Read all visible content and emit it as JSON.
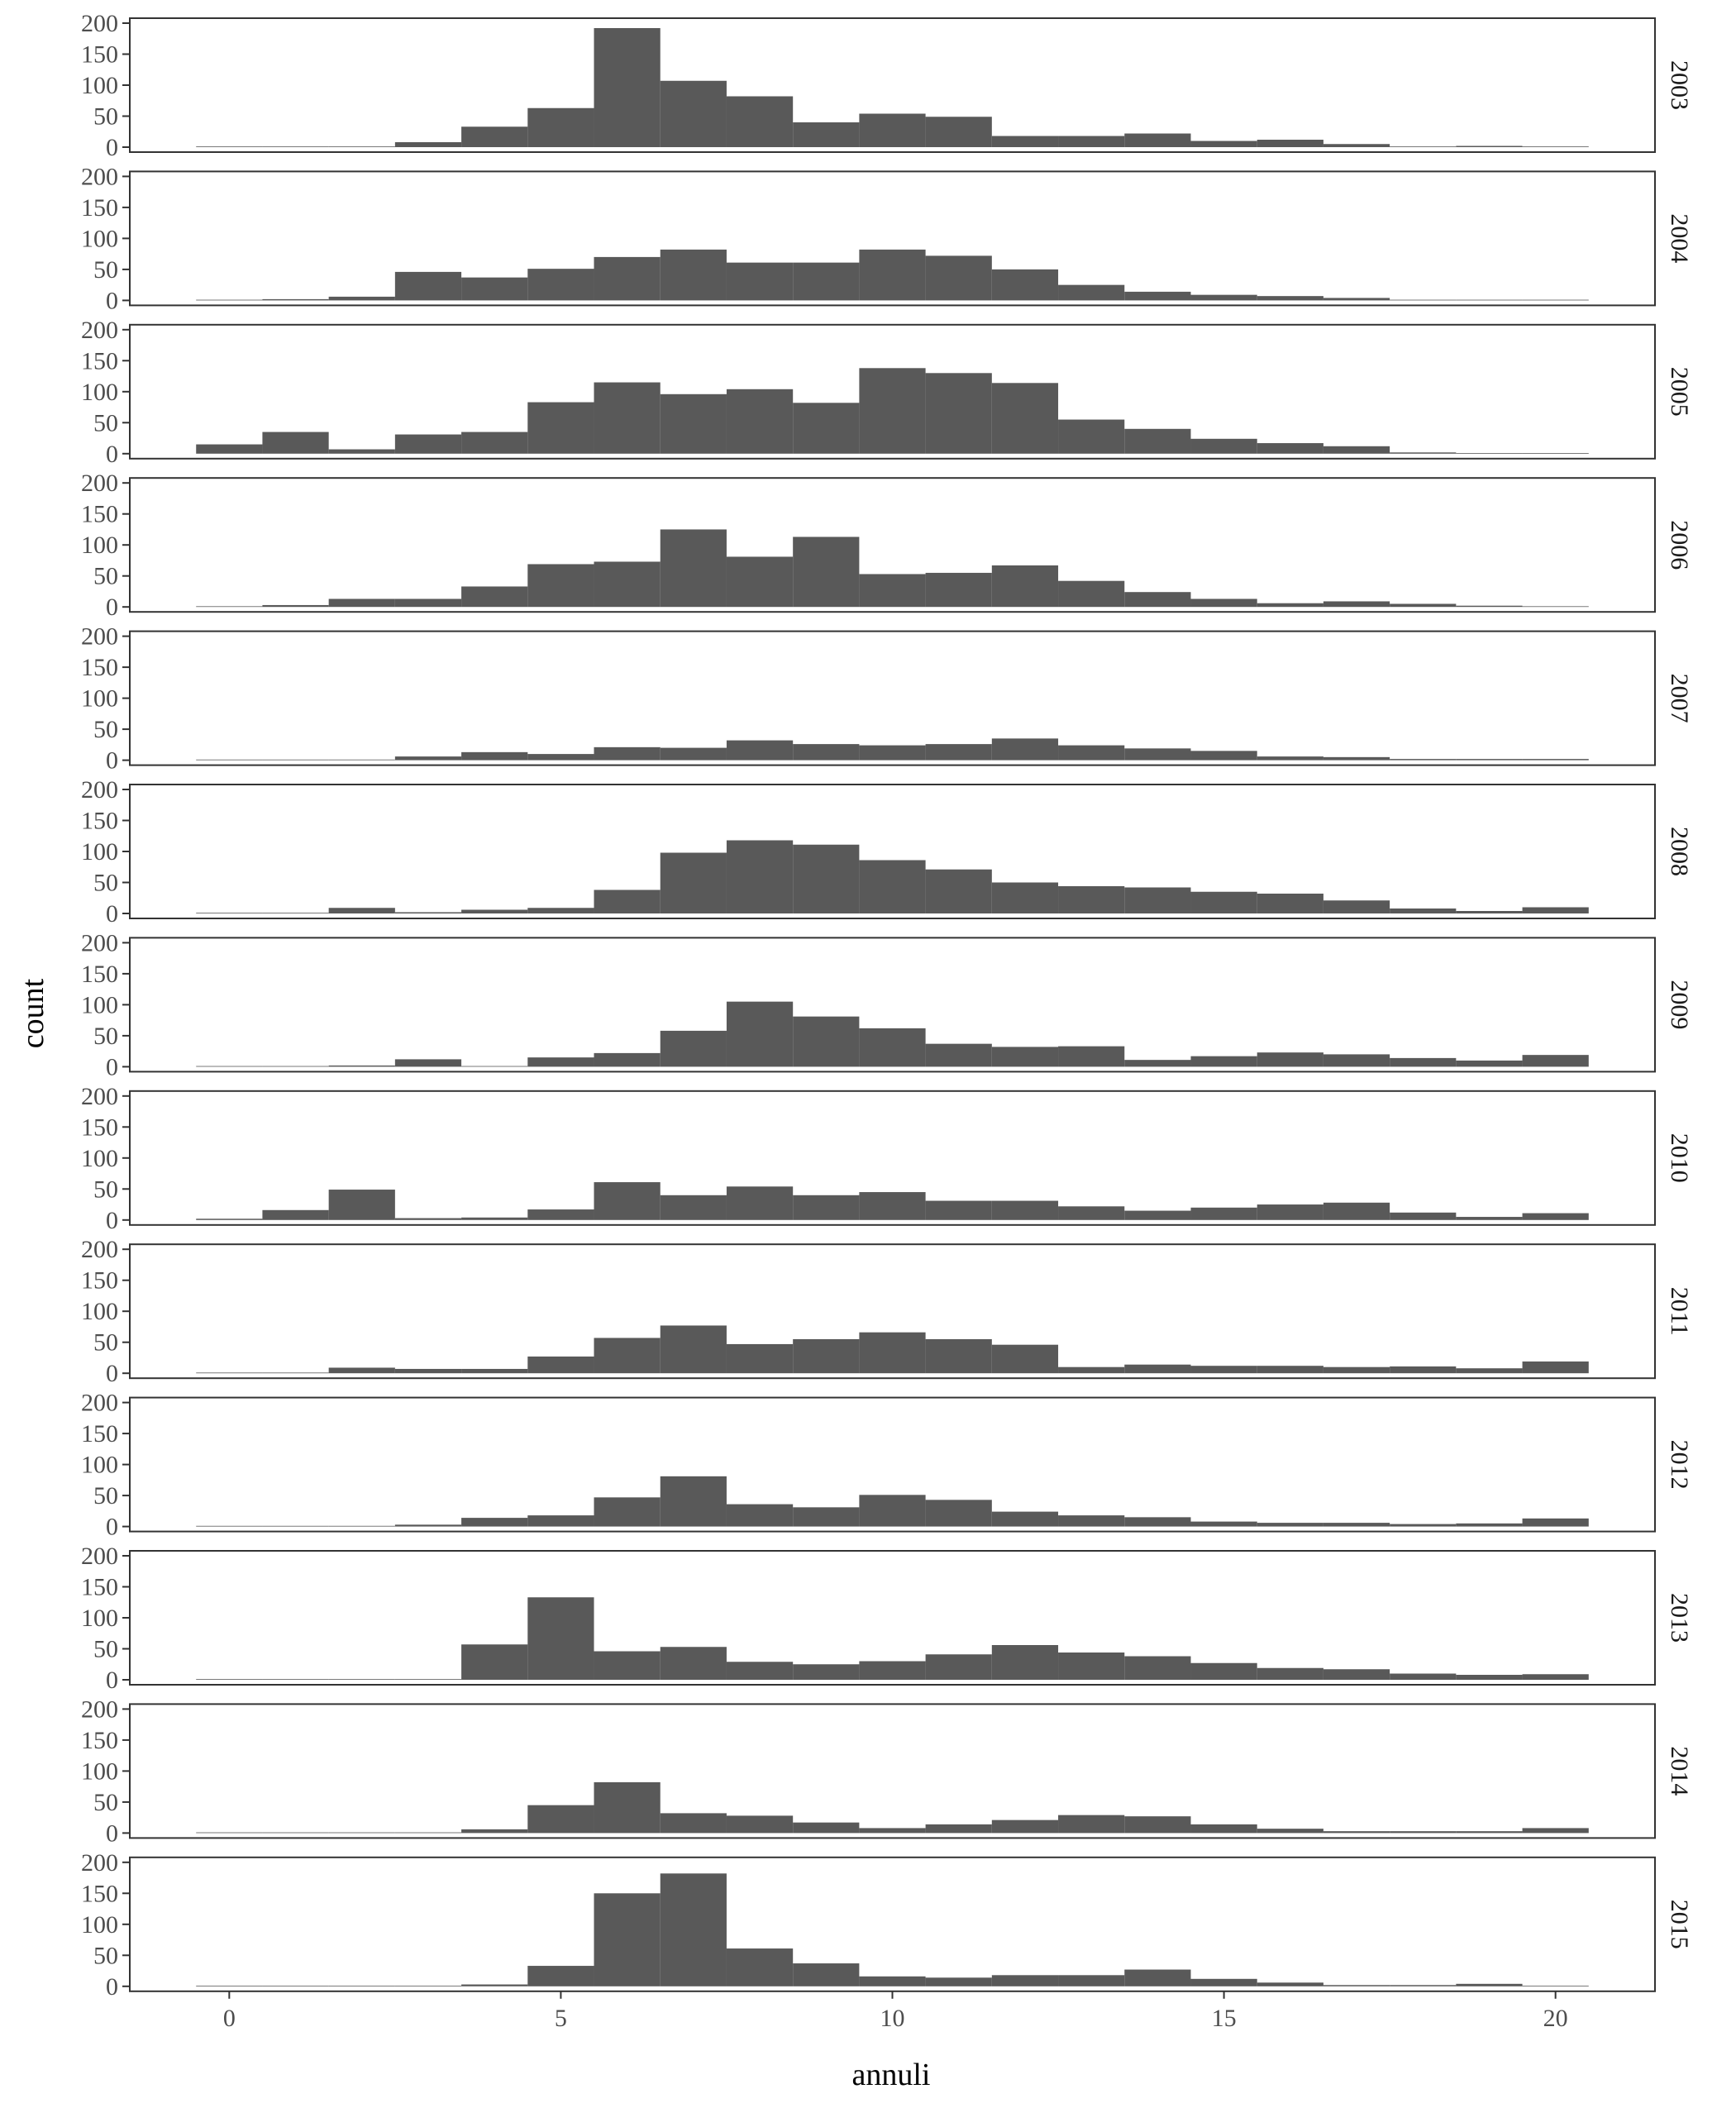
{
  "chart_data": {
    "type": "bar",
    "subtype": "faceted histogram",
    "xlabel": "annuli",
    "ylabel": "count",
    "xlim": [
      -1.5,
      21.5
    ],
    "ylim": [
      0,
      200
    ],
    "x_ticks": [
      "0",
      "5",
      "10",
      "15",
      "20"
    ],
    "y_ticks": [
      "0",
      "50",
      "100",
      "150",
      "200"
    ],
    "grid": false,
    "bar_color": "#595959",
    "bins": [
      0,
      1,
      2,
      3,
      4,
      5,
      6,
      7,
      8,
      9,
      10,
      11,
      12,
      13,
      14,
      15,
      16,
      17,
      18,
      19,
      20
    ],
    "panels": [
      {
        "label": "2003",
        "values": [
          0,
          0,
          0,
          8,
          33,
          63,
          192,
          107,
          82,
          40,
          54,
          49,
          18,
          18,
          22,
          10,
          12,
          5,
          0,
          2,
          0
        ]
      },
      {
        "label": "2004",
        "values": [
          0,
          2,
          6,
          46,
          37,
          51,
          70,
          82,
          61,
          61,
          82,
          72,
          50,
          25,
          14,
          9,
          7,
          4,
          1,
          1,
          1
        ]
      },
      {
        "label": "2005",
        "values": [
          15,
          35,
          7,
          31,
          35,
          83,
          115,
          96,
          104,
          82,
          138,
          130,
          114,
          55,
          40,
          24,
          17,
          12,
          2,
          0,
          0
        ]
      },
      {
        "label": "2006",
        "values": [
          0,
          3,
          13,
          13,
          33,
          69,
          73,
          125,
          81,
          113,
          53,
          55,
          67,
          42,
          24,
          13,
          6,
          9,
          5,
          2,
          0
        ]
      },
      {
        "label": "2007",
        "values": [
          0,
          0,
          0,
          6,
          13,
          10,
          21,
          20,
          32,
          26,
          24,
          26,
          35,
          24,
          19,
          15,
          6,
          5,
          2,
          2,
          2
        ]
      },
      {
        "label": "2008",
        "values": [
          0,
          0,
          9,
          2,
          6,
          9,
          38,
          98,
          118,
          111,
          86,
          71,
          50,
          44,
          42,
          35,
          32,
          21,
          8,
          4,
          10
        ]
      },
      {
        "label": "2009",
        "values": [
          0,
          0,
          2,
          12,
          0,
          15,
          22,
          58,
          105,
          81,
          62,
          37,
          32,
          33,
          11,
          17,
          23,
          20,
          14,
          10,
          19
        ]
      },
      {
        "label": "2010",
        "values": [
          2,
          16,
          49,
          3,
          4,
          17,
          61,
          40,
          54,
          40,
          45,
          31,
          31,
          22,
          15,
          20,
          25,
          28,
          12,
          5,
          11
        ]
      },
      {
        "label": "2011",
        "values": [
          0,
          0,
          9,
          7,
          7,
          27,
          57,
          77,
          47,
          55,
          66,
          55,
          46,
          10,
          14,
          12,
          12,
          10,
          11,
          8,
          19
        ]
      },
      {
        "label": "2012",
        "values": [
          0,
          0,
          0,
          3,
          14,
          18,
          47,
          81,
          36,
          31,
          51,
          43,
          24,
          18,
          15,
          8,
          6,
          6,
          4,
          5,
          13
        ]
      },
      {
        "label": "2013",
        "values": [
          0,
          0,
          0,
          0,
          57,
          133,
          46,
          53,
          29,
          25,
          30,
          41,
          56,
          44,
          38,
          27,
          19,
          17,
          10,
          8,
          9
        ]
      },
      {
        "label": "2014",
        "values": [
          0,
          0,
          0,
          0,
          6,
          45,
          82,
          32,
          28,
          17,
          8,
          14,
          21,
          29,
          27,
          14,
          7,
          3,
          3,
          3,
          8
        ]
      },
      {
        "label": "2015",
        "values": [
          0,
          0,
          0,
          0,
          3,
          33,
          150,
          182,
          61,
          37,
          16,
          14,
          18,
          18,
          27,
          12,
          6,
          2,
          2,
          4,
          0
        ]
      }
    ]
  }
}
